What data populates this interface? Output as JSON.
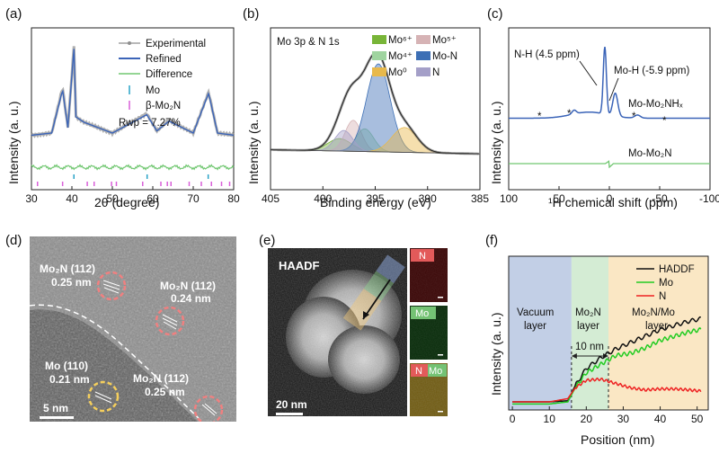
{
  "colors": {
    "experimental": "#8f8f8f",
    "refined": "#3b64b8",
    "difference": "#71c771",
    "mo_tick": "#29a3c7",
    "mo2n_tick": "#d95fd9",
    "mo6": "#78b538",
    "mo5": "#d6b3b5",
    "mo4": "#9fd49f",
    "mon": "#3d6fb5",
    "mo0": "#e8b94c",
    "n": "#a49fc8",
    "hadf": "#111111",
    "mo_line": "#22cc22",
    "n_line": "#ee2222",
    "vacuum_bg": "#c2cfe6",
    "mo2n_bg": "#d4ecd4",
    "mo2nmo_bg": "#fae7c4"
  },
  "panel_a": {
    "label": "(a)",
    "ylabel": "Intensity (a. u.)",
    "xlabel": "2θ (degree)",
    "xticks": [
      "30",
      "40",
      "50",
      "60",
      "70",
      "80"
    ],
    "legend": [
      "Experimental",
      "Refined",
      "Difference",
      "Mo",
      "β-Mo₂N"
    ],
    "rwp": "Rwp = 7.27%"
  },
  "panel_b": {
    "label": "(b)",
    "ylabel": "Intensity (a. u.)",
    "xlabel": "Binding energy (eV)",
    "xticks": [
      "405",
      "400",
      "395",
      "390",
      "385"
    ],
    "title": "Mo 3p & N 1s",
    "legend": [
      "Mo⁶⁺",
      "Mo⁵⁺",
      "Mo⁴⁺",
      "Mo-N",
      "Mo⁰",
      "N"
    ]
  },
  "panel_c": {
    "label": "(c)",
    "ylabel": "Intensity (a. u.)",
    "xlabel": "¹H chemical shift (ppm)",
    "xticks": [
      "100",
      "50",
      "0",
      "-50",
      "-100"
    ],
    "ann_nh": "N-H (4.5 ppm)",
    "ann_moh": "Mo-H (-5.9 ppm)",
    "series1": "Mo-Mo₂NHₓ",
    "series2": "Mo-Mo₂N",
    "star": "*"
  },
  "panel_d": {
    "label": "(d)",
    "ann1": [
      "Mo₂N (112)",
      "0.25 nm"
    ],
    "ann2": [
      "Mo₂N (112)",
      "0.24 nm"
    ],
    "ann3": [
      "Mo (110)",
      "0.21 nm"
    ],
    "ann4": [
      "Mo₂N (112)",
      "0.25 nm"
    ],
    "scale": "5 nm"
  },
  "panel_e": {
    "label": "(e)",
    "haadf": "HAADF",
    "scale": "20 nm",
    "map_n": "N",
    "map_mo": "Mo",
    "overlay_n": "N",
    "overlay_mo": "Mo"
  },
  "panel_f": {
    "label": "(f)",
    "ylabel": "Intensity (a. u.)",
    "xlabel": "Position (nm)",
    "xticks": [
      "0",
      "10",
      "20",
      "30",
      "40",
      "50"
    ],
    "legend": [
      "HADDF",
      "Mo",
      "N"
    ],
    "region1": [
      "Vacuum",
      "layer"
    ],
    "region2": [
      "Mo₂N",
      "layer"
    ],
    "region3": [
      "Mo₂N/Mo",
      "layer"
    ],
    "thickness": "10 nm"
  },
  "chart_data": [
    {
      "type": "line",
      "panel": "a",
      "xlabel": "2θ (degree)",
      "ylabel": "Intensity (a. u.)",
      "xlim": [
        30,
        80
      ],
      "series": [
        {
          "name": "Experimental",
          "x": [
            30,
            35,
            37.7,
            39,
            40.5,
            41,
            43,
            50,
            58.5,
            61,
            64,
            70,
            73.8,
            76,
            80
          ],
          "y": [
            0.18,
            0.2,
            0.62,
            0.25,
            1.0,
            0.35,
            0.3,
            0.2,
            0.38,
            0.22,
            0.32,
            0.2,
            0.58,
            0.2,
            0.18
          ]
        },
        {
          "name": "Refined",
          "x": [
            30,
            35,
            37.7,
            39,
            40.5,
            41,
            43,
            50,
            58.5,
            61,
            64,
            70,
            73.8,
            76,
            80
          ],
          "y": [
            0.18,
            0.2,
            0.6,
            0.25,
            0.98,
            0.35,
            0.3,
            0.2,
            0.37,
            0.22,
            0.31,
            0.2,
            0.57,
            0.2,
            0.18
          ]
        },
        {
          "name": "Difference",
          "x": [
            30,
            80
          ],
          "y": [
            0,
            0
          ]
        }
      ],
      "reflections_Mo": [
        40.5,
        58.6,
        73.7
      ],
      "reflections_Mo2N": [
        31.5,
        37.7,
        43.8,
        45.5,
        49.8,
        51,
        57.5,
        62,
        63.6,
        64.5,
        69,
        72,
        74.5,
        77,
        79
      ]
    },
    {
      "type": "area",
      "panel": "b",
      "xlabel": "Binding energy (eV)",
      "xlim": [
        405,
        385
      ],
      "components": [
        {
          "name": "Mo⁶⁺",
          "center": 398.4,
          "height": 0.12
        },
        {
          "name": "Mo⁵⁺",
          "center": 397.1,
          "height": 0.3
        },
        {
          "name": "Mo⁴⁺",
          "center": 396.0,
          "height": 0.22
        },
        {
          "name": "Mo-N",
          "center": 394.7,
          "height": 0.85
        },
        {
          "name": "Mo⁰",
          "center": 392.2,
          "height": 0.24
        },
        {
          "name": "N",
          "center": 398.0,
          "height": 0.2
        }
      ]
    },
    {
      "type": "line",
      "panel": "c",
      "xlabel": "¹H chemical shift (ppm)",
      "xlim": [
        100,
        -100
      ],
      "series": [
        {
          "name": "Mo-Mo₂NHₓ",
          "x": [
            100,
            60,
            35,
            20,
            10,
            4.5,
            0,
            -5.9,
            -15,
            -30,
            -60,
            -100
          ],
          "y": [
            0.1,
            0.12,
            0.18,
            0.2,
            0.3,
            1.0,
            0.45,
            0.4,
            0.2,
            0.15,
            0.1,
            0.1
          ]
        },
        {
          "name": "Mo-Mo₂N",
          "x": [
            100,
            5,
            0,
            -5,
            -100
          ],
          "y": [
            0,
            0.02,
            -0.04,
            0.02,
            0
          ]
        }
      ]
    },
    {
      "type": "line",
      "panel": "f",
      "xlabel": "Position (nm)",
      "ylabel": "Intensity (a. u.)",
      "xlim": [
        -1,
        53
      ],
      "series": [
        {
          "name": "HADDF",
          "x": [
            0,
            10,
            15,
            17,
            20,
            24,
            28,
            32,
            36,
            40,
            44,
            48,
            51
          ],
          "y": [
            0.05,
            0.05,
            0.06,
            0.2,
            0.36,
            0.46,
            0.54,
            0.6,
            0.66,
            0.72,
            0.76,
            0.8,
            0.82
          ]
        },
        {
          "name": "Mo",
          "x": [
            0,
            10,
            15,
            17,
            20,
            24,
            28,
            32,
            36,
            40,
            44,
            48,
            51
          ],
          "y": [
            0.03,
            0.03,
            0.05,
            0.18,
            0.32,
            0.4,
            0.48,
            0.5,
            0.55,
            0.62,
            0.66,
            0.7,
            0.72
          ]
        },
        {
          "name": "N",
          "x": [
            0,
            10,
            15,
            17,
            20,
            24,
            28,
            32,
            36,
            40,
            44,
            48,
            51
          ],
          "y": [
            0.05,
            0.05,
            0.08,
            0.18,
            0.25,
            0.26,
            0.22,
            0.18,
            0.16,
            0.17,
            0.17,
            0.16,
            0.15
          ]
        }
      ],
      "regions": [
        [
          -1,
          16
        ],
        [
          16,
          26
        ],
        [
          26,
          53
        ]
      ]
    }
  ]
}
